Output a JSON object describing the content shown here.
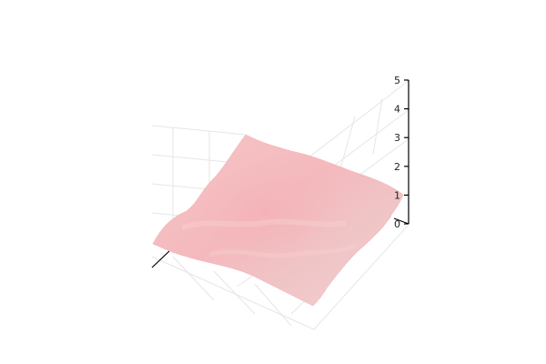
{
  "chart_data": {
    "type": "surface",
    "title": "",
    "xlabel": "",
    "ylabel": "",
    "zlabel": "",
    "zlim": [
      0,
      5
    ],
    "z_ticks": [
      "0",
      "1",
      "2",
      "3",
      "4",
      "5"
    ],
    "grid": true,
    "legend": "none",
    "surface": {
      "approximate_height": 1,
      "height_range": [
        0.8,
        1.2
      ],
      "color": "#f4b9bd",
      "shading": "smooth"
    }
  },
  "colors": {
    "surface_fill": "#f4b9bd",
    "surface_highlight": "#f9d2d4",
    "surface_shadow": "#eca9ae",
    "gridline": "#e6e6e6",
    "axis": "#000000"
  }
}
